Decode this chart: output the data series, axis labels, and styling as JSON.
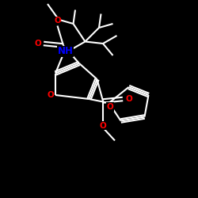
{
  "bg_color": "#000000",
  "bond_color": "#ffffff",
  "N_color": "#0000ff",
  "O_color": "#ff0000",
  "lw": 1.5,
  "figsize": [
    2.5,
    2.5
  ],
  "dpi": 100,
  "xlim": [
    0,
    10
  ],
  "ylim": [
    0,
    10
  ]
}
